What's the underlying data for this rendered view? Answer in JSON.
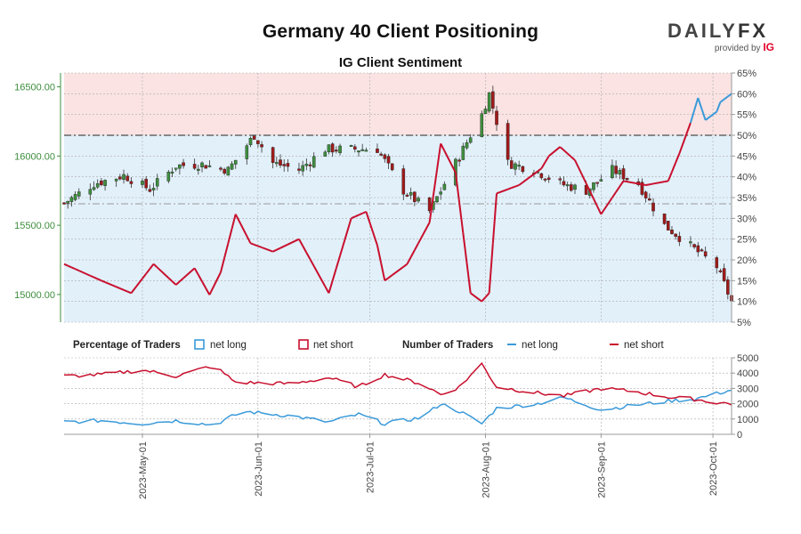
{
  "title": "Germany 40 Client Positioning",
  "subtitle": "IG Client Sentiment",
  "brand": {
    "name_main": "DAILY",
    "name_fx": "FX",
    "provided_by": "provided by",
    "ig": "IG"
  },
  "colors": {
    "long": "#3a9ad9",
    "short": "#c8102e",
    "candle_up": "#3e8e3e",
    "candle_down": "#a01a1a",
    "bg_short_zone": "#fbe3e3",
    "bg_long_zone": "#e2f0fa"
  },
  "legend": {
    "percentage_title": "Percentage of Traders",
    "number_title": "Number of Traders",
    "net_long": "net long",
    "net_short": "net short"
  },
  "chart_data": [
    {
      "type": "candlestick",
      "name": "price",
      "ylabel": "",
      "ylim": [
        14800,
        16600
      ],
      "yticks": [
        15000,
        15500,
        16000,
        16500
      ],
      "ytick_labels": [
        "15000.00",
        "15500.00",
        "16000.00",
        "16500.00"
      ],
      "y2lim": [
        5,
        65
      ],
      "y2ticks": [
        5,
        10,
        15,
        20,
        25,
        30,
        35,
        40,
        45,
        50,
        55,
        60,
        65
      ],
      "y2tick_labels": [
        "5%",
        "10%",
        "15%",
        "20%",
        "25%",
        "30%",
        "35%",
        "40%",
        "45%",
        "50%",
        "55%",
        "60%",
        "65%"
      ],
      "reference_lines_pct": [
        50,
        33.5
      ],
      "x_start": "2023-04-10",
      "x_end": "2023-10-06",
      "xticks": [
        "2023-May-01",
        "2023-Jun-01",
        "2023-Jul-01",
        "2023-Aug-01",
        "2023-Sep-01",
        "2023-Oct-01"
      ],
      "xtick_dates": [
        "2023-05-01",
        "2023-06-01",
        "2023-07-01",
        "2023-08-01",
        "2023-09-01",
        "2023-10-01"
      ],
      "close_anchors": [
        [
          "2023-04-10",
          15660
        ],
        [
          "2023-04-18",
          15800
        ],
        [
          "2023-04-26",
          15860
        ],
        [
          "2023-05-03",
          15760
        ],
        [
          "2023-05-10",
          15930
        ],
        [
          "2023-05-17",
          15940
        ],
        [
          "2023-05-24",
          15900
        ],
        [
          "2023-05-31",
          16150
        ],
        [
          "2023-06-05",
          15950
        ],
        [
          "2023-06-12",
          15900
        ],
        [
          "2023-06-19",
          16050
        ],
        [
          "2023-06-26",
          16050
        ],
        [
          "2023-07-03",
          16050
        ],
        [
          "2023-07-10",
          15750
        ],
        [
          "2023-07-17",
          15600
        ],
        [
          "2023-07-24",
          15950
        ],
        [
          "2023-07-31",
          16300
        ],
        [
          "2023-08-02",
          16450
        ],
        [
          "2023-08-07",
          15950
        ],
        [
          "2023-08-14",
          15900
        ],
        [
          "2023-08-21",
          15800
        ],
        [
          "2023-08-28",
          15750
        ],
        [
          "2023-09-04",
          15900
        ],
        [
          "2023-09-11",
          15800
        ],
        [
          "2023-09-18",
          15500
        ],
        [
          "2023-09-25",
          15350
        ],
        [
          "2023-10-02",
          15200
        ],
        [
          "2023-10-06",
          14950
        ]
      ],
      "net_long_pct_anchors": [
        [
          "2023-04-10",
          19
        ],
        [
          "2023-04-20",
          15
        ],
        [
          "2023-04-28",
          12
        ],
        [
          "2023-05-04",
          19
        ],
        [
          "2023-05-10",
          14
        ],
        [
          "2023-05-15",
          18
        ],
        [
          "2023-05-20",
          10
        ],
        [
          "2023-05-26",
          31
        ],
        [
          "2023-05-30",
          24
        ],
        [
          "2023-06-05",
          22
        ],
        [
          "2023-06-12",
          25
        ],
        [
          "2023-06-20",
          12
        ],
        [
          "2023-06-26",
          30
        ],
        [
          "2023-07-01",
          32
        ],
        [
          "2023-07-05",
          15
        ],
        [
          "2023-07-11",
          19
        ],
        [
          "2023-07-17",
          29
        ],
        [
          "2023-07-20",
          48
        ],
        [
          "2023-07-24",
          41
        ],
        [
          "2023-07-28",
          12
        ],
        [
          "2023-07-31",
          10
        ],
        [
          "2023-08-02",
          12
        ],
        [
          "2023-08-04",
          36
        ],
        [
          "2023-08-10",
          38
        ],
        [
          "2023-08-16",
          42
        ],
        [
          "2023-08-20",
          48
        ],
        [
          "2023-08-25",
          44
        ],
        [
          "2023-09-01",
          31
        ],
        [
          "2023-09-07",
          39
        ],
        [
          "2023-09-13",
          38
        ],
        [
          "2023-09-19",
          39
        ],
        [
          "2023-09-24",
          50
        ],
        [
          "2023-09-27",
          59
        ],
        [
          "2023-09-30",
          51
        ],
        [
          "2023-10-03",
          58
        ],
        [
          "2023-10-06",
          60
        ]
      ]
    },
    {
      "type": "line",
      "name": "number_of_traders",
      "ylim": [
        0,
        5000
      ],
      "yticks": [
        0,
        1000,
        2000,
        3000,
        4000,
        5000
      ],
      "ytick_labels": [
        "0",
        "1000",
        "2000",
        "3000",
        "4000",
        "5000"
      ],
      "series": [
        {
          "name": "net long",
          "anchors": [
            [
              "2023-04-10",
              800
            ],
            [
              "2023-04-20",
              900
            ],
            [
              "2023-05-01",
              700
            ],
            [
              "2023-05-10",
              900
            ],
            [
              "2023-05-20",
              600
            ],
            [
              "2023-05-28",
              1500
            ],
            [
              "2023-06-10",
              1200
            ],
            [
              "2023-06-20",
              800
            ],
            [
              "2023-06-28",
              1300
            ],
            [
              "2023-07-05",
              700
            ],
            [
              "2023-07-15",
              1100
            ],
            [
              "2023-07-20",
              2000
            ],
            [
              "2023-07-25",
              1500
            ],
            [
              "2023-07-31",
              700
            ],
            [
              "2023-08-04",
              1700
            ],
            [
              "2023-08-15",
              2000
            ],
            [
              "2023-08-22",
              2400
            ],
            [
              "2023-09-01",
              1600
            ],
            [
              "2023-09-10",
              1900
            ],
            [
              "2023-09-20",
              2200
            ],
            [
              "2023-09-26",
              2300
            ],
            [
              "2023-10-01",
              2600
            ],
            [
              "2023-10-06",
              2900
            ]
          ]
        },
        {
          "name": "net short",
          "anchors": [
            [
              "2023-04-10",
              3800
            ],
            [
              "2023-04-20",
              3900
            ],
            [
              "2023-05-01",
              4200
            ],
            [
              "2023-05-10",
              3800
            ],
            [
              "2023-05-20",
              4500
            ],
            [
              "2023-05-26",
              3400
            ],
            [
              "2023-06-10",
              3300
            ],
            [
              "2023-06-20",
              3700
            ],
            [
              "2023-06-28",
              3100
            ],
            [
              "2023-07-05",
              3900
            ],
            [
              "2023-07-15",
              3300
            ],
            [
              "2023-07-20",
              2600
            ],
            [
              "2023-07-25",
              3100
            ],
            [
              "2023-07-31",
              4600
            ],
            [
              "2023-08-04",
              3100
            ],
            [
              "2023-08-15",
              2700
            ],
            [
              "2023-08-22",
              2500
            ],
            [
              "2023-09-01",
              3000
            ],
            [
              "2023-09-10",
              2800
            ],
            [
              "2023-09-20",
              2400
            ],
            [
              "2023-09-26",
              2300
            ],
            [
              "2023-10-01",
              2100
            ],
            [
              "2023-10-06",
              2000
            ]
          ]
        }
      ]
    }
  ]
}
